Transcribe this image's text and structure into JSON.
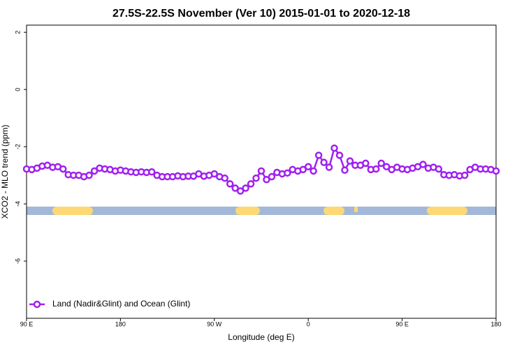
{
  "chart_data": {
    "type": "line",
    "title": "27.5S-22.5S November (Ver 10)   2015-01-01 to 2020-12-18",
    "x_label": "Longitude (deg E)",
    "y_label": "XCO2 - MLO trend (ppm)",
    "x": [
      90,
      95,
      100,
      105,
      110,
      115,
      120,
      125,
      130,
      135,
      140,
      145,
      150,
      155,
      160,
      165,
      170,
      175,
      180,
      185,
      190,
      195,
      200,
      205,
      210,
      215,
      220,
      225,
      230,
      235,
      240,
      245,
      250,
      255,
      260,
      265,
      270,
      275,
      280,
      285,
      290,
      295,
      300,
      305,
      310,
      315,
      320,
      325,
      330,
      335,
      340,
      345,
      350,
      355,
      360,
      365,
      370,
      375,
      380,
      385,
      390,
      395,
      400,
      405,
      410,
      415,
      420,
      425,
      430,
      435,
      440,
      445,
      450,
      455,
      460,
      465,
      470,
      475,
      480,
      485,
      490,
      495,
      500,
      505,
      510,
      515,
      520,
      525,
      530,
      535,
      540
    ],
    "series": [
      {
        "name": "Land (Nadir&Glint) and Ocean (Glint)",
        "color": "#a020f0",
        "values": [
          -2.78,
          -2.8,
          -2.75,
          -2.68,
          -2.65,
          -2.72,
          -2.7,
          -2.78,
          -2.98,
          -3.0,
          -3.0,
          -3.05,
          -3.0,
          -2.85,
          -2.75,
          -2.78,
          -2.8,
          -2.85,
          -2.82,
          -2.85,
          -2.88,
          -2.9,
          -2.88,
          -2.9,
          -2.88,
          -3.0,
          -3.05,
          -3.05,
          -3.05,
          -3.02,
          -3.05,
          -3.03,
          -3.03,
          -2.95,
          -3.03,
          -3.0,
          -2.95,
          -3.05,
          -3.1,
          -3.3,
          -3.45,
          -3.55,
          -3.45,
          -3.3,
          -3.1,
          -2.85,
          -3.15,
          -3.05,
          -2.9,
          -2.95,
          -2.92,
          -2.8,
          -2.85,
          -2.8,
          -2.7,
          -2.85,
          -2.3,
          -2.55,
          -2.72,
          -2.05,
          -2.3,
          -2.82,
          -2.5,
          -2.65,
          -2.65,
          -2.58,
          -2.8,
          -2.78,
          -2.58,
          -2.7,
          -2.8,
          -2.72,
          -2.78,
          -2.8,
          -2.75,
          -2.7,
          -2.62,
          -2.75,
          -2.72,
          -2.78,
          -2.98,
          -3.0,
          -2.98,
          -3.02,
          -3.0,
          -2.8,
          -2.72,
          -2.78,
          -2.78,
          -2.8,
          -2.85
        ]
      }
    ],
    "xlim": [
      90,
      540
    ],
    "xticks": [
      {
        "value": 90,
        "label": "90 E"
      },
      180,
      {
        "value": 270,
        "label": "90 W"
      },
      {
        "value": 360,
        "label": "0"
      },
      {
        "value": 450,
        "label": "90 E"
      },
      {
        "value": 540,
        "label": "180"
      }
    ],
    "ylim": [
      -8,
      2.25
    ],
    "yticks": [
      -6,
      -4,
      -2,
      0,
      2
    ],
    "grid": false,
    "legend": "bottom-left"
  }
}
